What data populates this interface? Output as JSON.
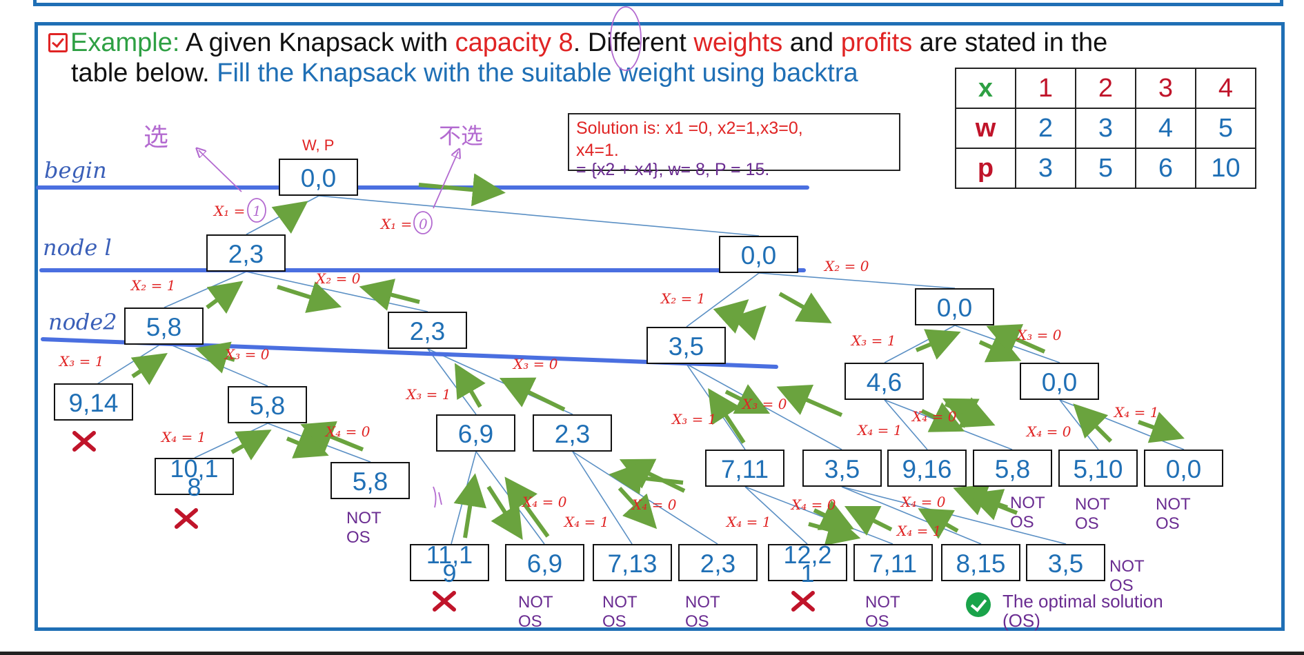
{
  "heading": {
    "example_label": "Example:",
    "line1_a": " A given Knapsack with ",
    "capacity_word": "capacity",
    "capacity_value": " 8",
    "line1_b": ". Different ",
    "weights_word": "weights",
    "line1_c": " and ",
    "profits_word": "profits",
    "line1_d": " are stated in the",
    "line2_a": "table below. ",
    "line2_b": "Fill the Knapsack with the suitable weight using backtra"
  },
  "table": {
    "header": [
      "x",
      "1",
      "2",
      "3",
      "4"
    ],
    "w_row": [
      "w",
      "2",
      "3",
      "4",
      "5"
    ],
    "p_row": [
      "p",
      "3",
      "5",
      "6",
      "10"
    ]
  },
  "solution": {
    "line1": "Solution is:  x1 =0, x2=1,x3=0,",
    "line2": "x4=1.",
    "line3": "= {x2 + x4}, w= 8, P = 15."
  },
  "wp_label": "W, P",
  "hand_labels": {
    "begin": "begin",
    "node1": "node l",
    "node2": "node2",
    "choose": "选",
    "not_choose": "不选"
  },
  "nodes": {
    "root": "0,0",
    "n1_left": "2,3",
    "n1_right": "0,0",
    "n2_a": "5,8",
    "n2_b": "2,3",
    "n2_c": "3,5",
    "n2_d": "0,0",
    "n3_a": "9,14",
    "n3_b": "5,8",
    "n3_c": "6,9",
    "n3_d": "2,3",
    "n3_e": "4,6",
    "n3_f": "0,0",
    "l_a": "10,1\n8",
    "l_b": "5,8",
    "l_c": "7,11",
    "l_d": "3,5",
    "l_e": "9,16",
    "l_f": "5,8",
    "l_g": "5,10",
    "l_h": "0,0",
    "b_a": "11,1\n9",
    "b_b": "6,9",
    "b_c": "7,13",
    "b_d": "2,3",
    "b_e": "12,2\n1",
    "b_f": "7,11",
    "b_g": "8,15",
    "b_h": "3,5"
  },
  "edge_labels": {
    "x1_1": "X₁ =",
    "x1_1_val": "1",
    "x1_0": "X₁ =",
    "x1_0_val": "0",
    "x2_1": "X₂ = 1",
    "x2_0": "X₂ = 0",
    "x2_1b": "X₂ = 1",
    "x2_0b": "X₂ = 0",
    "x3_1a": "X₃ = 1",
    "x3_0a": "X₃ = 0",
    "x3_1b": "X₃ = 1",
    "x3_0b": "X₃ = 0",
    "x3_1c": "X₃ = 1",
    "x3_0c": "X₃ = 0",
    "x3_1d": "X₃ = 1",
    "x3_0d": "X₃ = 0",
    "x4_1a": "X₄ = 1",
    "x4_0a": "X₄ = 0",
    "x4_0b": "X₄ = 0",
    "x4_1c": "X₄ = 1",
    "x4_0c": "X₄ = 0",
    "x4_1d": "X₄ = 1",
    "x4_0d": "X₄ = 0",
    "x4_0e": "X₄ = 0",
    "x4_1e": "X₄ = 1",
    "x4_0f": "X₄ = 0",
    "x4_0g": "X₄ = 0",
    "x4_1f": "X₄ = 1",
    "x4_1g": "X₄ = 1"
  },
  "not_os": "NOT\nOS",
  "os_legend": "The optimal solution\n(OS)",
  "colors": {
    "frame": "#1f6fb5",
    "node_text": "#1f6fb5",
    "edge_label": "#e02424",
    "arrow": "#6aa33e",
    "band_line": "#4a6fe0",
    "cross": "#c0142a",
    "not_os": "#6a2c91"
  }
}
